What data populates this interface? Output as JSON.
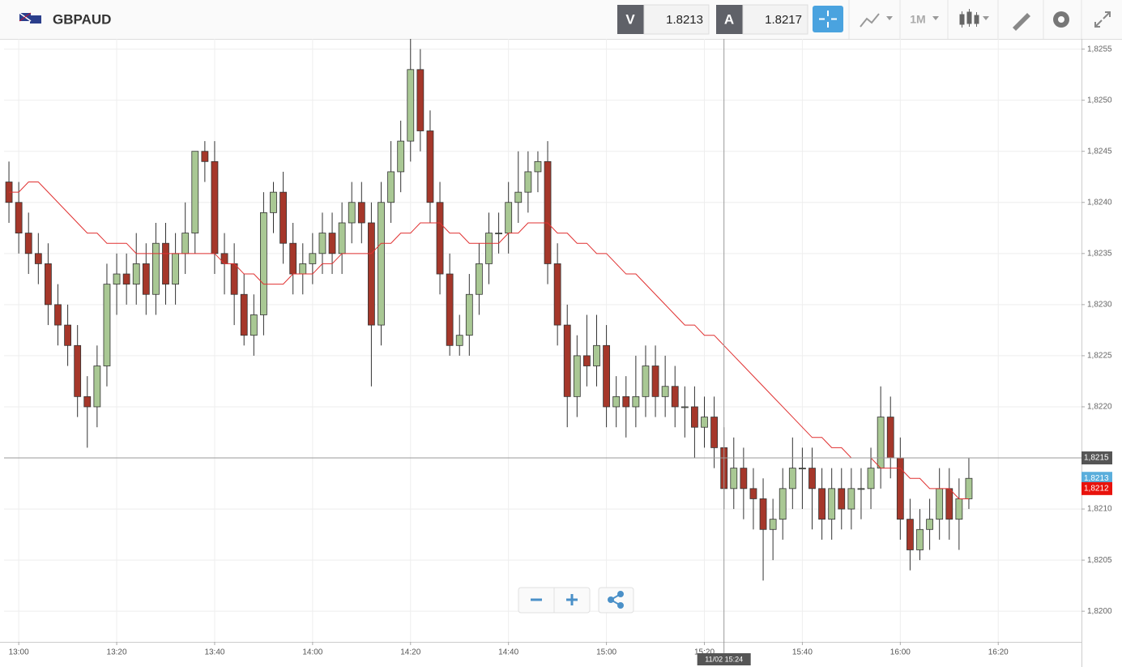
{
  "toolbar": {
    "symbol": "GBPAUD",
    "sell_label": "V",
    "sell_price": "1.8213",
    "buy_label": "A",
    "buy_price": "1.8217",
    "timeframe": "1M"
  },
  "chart_data": {
    "type": "candlestick",
    "x": [
      "12:58",
      "13:00",
      "13:02",
      "13:04",
      "13:06",
      "13:08",
      "13:10",
      "13:12",
      "13:14",
      "13:16",
      "13:18",
      "13:20",
      "13:22",
      "13:24",
      "13:26",
      "13:28",
      "13:30",
      "13:32",
      "13:34",
      "13:36",
      "13:38",
      "13:40",
      "13:42",
      "13:44",
      "13:46",
      "13:48",
      "13:50",
      "13:52",
      "13:54",
      "13:56",
      "13:58",
      "14:00",
      "14:02",
      "14:04",
      "14:06",
      "14:08",
      "14:10",
      "14:12",
      "14:14",
      "14:16",
      "14:18",
      "14:20",
      "14:22",
      "14:24",
      "14:26",
      "14:28",
      "14:30",
      "14:32",
      "14:34",
      "14:36",
      "14:38",
      "14:40",
      "14:42",
      "14:44",
      "14:46",
      "14:48",
      "14:50",
      "14:52",
      "14:54",
      "14:56",
      "14:58",
      "15:00",
      "15:02",
      "15:04",
      "15:06",
      "15:08",
      "15:10",
      "15:12",
      "15:14",
      "15:16",
      "15:18",
      "15:20",
      "15:22",
      "15:24",
      "15:26",
      "15:28",
      "15:30",
      "15:32",
      "15:34",
      "15:36",
      "15:38",
      "15:40",
      "15:42",
      "15:44",
      "15:46",
      "15:48",
      "15:50",
      "15:52",
      "15:54",
      "15:56",
      "15:58",
      "16:00",
      "16:02",
      "16:04",
      "16:06",
      "16:08",
      "16:10",
      "16:12",
      "16:14"
    ],
    "open": [
      1.8242,
      1.824,
      1.8237,
      1.8235,
      1.8234,
      1.823,
      1.8228,
      1.8226,
      1.8221,
      1.822,
      1.8224,
      1.8232,
      1.8233,
      1.8232,
      1.8234,
      1.8231,
      1.8236,
      1.8232,
      1.8235,
      1.8237,
      1.8245,
      1.8244,
      1.8235,
      1.8234,
      1.8231,
      1.8227,
      1.8229,
      1.8239,
      1.8241,
      1.8236,
      1.8233,
      1.8234,
      1.8235,
      1.8237,
      1.8235,
      1.8238,
      1.824,
      1.8238,
      1.8228,
      1.824,
      1.8243,
      1.8246,
      1.8253,
      1.8247,
      1.824,
      1.8233,
      1.8226,
      1.8227,
      1.8231,
      1.8234,
      1.8237,
      1.8237,
      1.824,
      1.8241,
      1.8243,
      1.8244,
      1.8234,
      1.8228,
      1.8221,
      1.8225,
      1.8224,
      1.8226,
      1.822,
      1.8221,
      1.822,
      1.8221,
      1.8224,
      1.8221,
      1.8222,
      1.822,
      1.822,
      1.8218,
      1.8219,
      1.8216,
      1.8212,
      1.8214,
      1.8212,
      1.8211,
      1.8208,
      1.8209,
      1.8212,
      1.8214,
      1.8214,
      1.8212,
      1.8209,
      1.8212,
      1.821,
      1.8212,
      1.8212,
      1.8214,
      1.8219,
      1.8215,
      1.8209,
      1.8206,
      1.8208,
      1.8209,
      1.8212,
      1.8209,
      1.8211
    ],
    "high": [
      1.8244,
      1.8242,
      1.8239,
      1.8237,
      1.8236,
      1.8232,
      1.823,
      1.8228,
      1.8223,
      1.8226,
      1.8234,
      1.8235,
      1.8235,
      1.8237,
      1.8236,
      1.8238,
      1.8238,
      1.8237,
      1.824,
      1.8245,
      1.8246,
      1.8246,
      1.8237,
      1.8236,
      1.8233,
      1.8231,
      1.8241,
      1.8242,
      1.8243,
      1.8238,
      1.8236,
      1.8237,
      1.8239,
      1.8239,
      1.824,
      1.8242,
      1.8242,
      1.824,
      1.8242,
      1.8246,
      1.8248,
      1.8256,
      1.8255,
      1.8249,
      1.8242,
      1.8235,
      1.8229,
      1.8233,
      1.8236,
      1.8239,
      1.8239,
      1.8242,
      1.8245,
      1.8245,
      1.8245,
      1.8246,
      1.8236,
      1.823,
      1.8227,
      1.8229,
      1.8229,
      1.8228,
      1.8223,
      1.8223,
      1.8225,
      1.8226,
      1.8226,
      1.8225,
      1.8224,
      1.8222,
      1.8222,
      1.8221,
      1.8221,
      1.8218,
      1.8217,
      1.8216,
      1.8214,
      1.8213,
      1.8211,
      1.8214,
      1.8217,
      1.8216,
      1.8216,
      1.8214,
      1.8214,
      1.8214,
      1.8214,
      1.8214,
      1.8216,
      1.8222,
      1.8221,
      1.8217,
      1.8211,
      1.821,
      1.8211,
      1.8214,
      1.8214,
      1.8213,
      1.8215
    ],
    "low": [
      1.8238,
      1.8235,
      1.8233,
      1.8232,
      1.8228,
      1.8226,
      1.8224,
      1.8219,
      1.8216,
      1.8218,
      1.8222,
      1.8229,
      1.823,
      1.823,
      1.8229,
      1.8229,
      1.823,
      1.823,
      1.8233,
      1.8235,
      1.8242,
      1.8233,
      1.8231,
      1.8228,
      1.8226,
      1.8225,
      1.8227,
      1.8237,
      1.8234,
      1.8231,
      1.8231,
      1.8232,
      1.8233,
      1.8233,
      1.8233,
      1.8236,
      1.8236,
      1.8222,
      1.8226,
      1.8238,
      1.8241,
      1.8244,
      1.8245,
      1.8238,
      1.8231,
      1.8225,
      1.8225,
      1.8225,
      1.8229,
      1.8232,
      1.8235,
      1.8235,
      1.8238,
      1.8239,
      1.8241,
      1.8232,
      1.8226,
      1.8218,
      1.8219,
      1.8222,
      1.8222,
      1.8218,
      1.8218,
      1.8217,
      1.8218,
      1.8219,
      1.8219,
      1.8219,
      1.8218,
      1.8217,
      1.8215,
      1.8216,
      1.8214,
      1.821,
      1.821,
      1.8209,
      1.8208,
      1.8203,
      1.8205,
      1.8207,
      1.821,
      1.821,
      1.8208,
      1.8207,
      1.8207,
      1.8208,
      1.8208,
      1.8209,
      1.821,
      1.8212,
      1.8213,
      1.8207,
      1.8204,
      1.8205,
      1.8206,
      1.8207,
      1.8207,
      1.8206,
      1.821
    ],
    "close": [
      1.824,
      1.8237,
      1.8235,
      1.8234,
      1.823,
      1.8228,
      1.8226,
      1.8221,
      1.822,
      1.8224,
      1.8232,
      1.8233,
      1.8232,
      1.8234,
      1.8231,
      1.8236,
      1.8232,
      1.8235,
      1.8237,
      1.8245,
      1.8244,
      1.8235,
      1.8234,
      1.8231,
      1.8227,
      1.8229,
      1.8239,
      1.8241,
      1.8236,
      1.8233,
      1.8234,
      1.8235,
      1.8237,
      1.8235,
      1.8238,
      1.824,
      1.8238,
      1.8228,
      1.824,
      1.8243,
      1.8246,
      1.8253,
      1.8247,
      1.824,
      1.8233,
      1.8226,
      1.8227,
      1.8231,
      1.8234,
      1.8237,
      1.8237,
      1.824,
      1.8241,
      1.8243,
      1.8244,
      1.8234,
      1.8228,
      1.8221,
      1.8225,
      1.8224,
      1.8226,
      1.822,
      1.8221,
      1.822,
      1.8221,
      1.8224,
      1.8221,
      1.8222,
      1.822,
      1.822,
      1.8218,
      1.8219,
      1.8216,
      1.8212,
      1.8214,
      1.8212,
      1.8211,
      1.8208,
      1.8209,
      1.8212,
      1.8214,
      1.8214,
      1.8212,
      1.8209,
      1.8212,
      1.821,
      1.8212,
      1.8212,
      1.8214,
      1.8219,
      1.8215,
      1.8209,
      1.8206,
      1.8208,
      1.8209,
      1.8212,
      1.8209,
      1.8211,
      1.8213
    ],
    "up_color": "#a9c894",
    "down_color": "#a5372a",
    "ma": {
      "color": "#e03030",
      "values": [
        1.8241,
        1.8241,
        1.8242,
        1.8242,
        1.8241,
        1.824,
        1.8239,
        1.8238,
        1.8237,
        1.8237,
        1.8236,
        1.8236,
        1.8236,
        1.8235,
        1.8235,
        1.8235,
        1.8235,
        1.8235,
        1.8235,
        1.8235,
        1.8235,
        1.8235,
        1.8234,
        1.8234,
        1.8233,
        1.8233,
        1.8232,
        1.8232,
        1.8232,
        1.8233,
        1.8233,
        1.8233,
        1.8234,
        1.8234,
        1.8235,
        1.8235,
        1.8235,
        1.8235,
        1.8236,
        1.8236,
        1.8237,
        1.8237,
        1.8238,
        1.8238,
        1.8238,
        1.8237,
        1.8237,
        1.8236,
        1.8236,
        1.8236,
        1.8236,
        1.8237,
        1.8237,
        1.8238,
        1.8238,
        1.8238,
        1.8237,
        1.8237,
        1.8236,
        1.8236,
        1.8235,
        1.8235,
        1.8234,
        1.8233,
        1.8233,
        1.8232,
        1.8231,
        1.823,
        1.8229,
        1.8228,
        1.8228,
        1.8227,
        1.8227,
        1.8226,
        1.8225,
        1.8224,
        1.8223,
        1.8222,
        1.8221,
        1.822,
        1.8219,
        1.8218,
        1.8217,
        1.8217,
        1.8216,
        1.8216,
        1.8215,
        1.8215,
        1.8215,
        1.8214,
        1.8214,
        1.8214,
        1.8213,
        1.8213,
        1.8212,
        1.8212,
        1.8212,
        1.8211,
        1.8211
      ]
    },
    "xlim": [
      "12:57",
      "16:37"
    ],
    "xticks": [
      "13:00",
      "13:20",
      "13:40",
      "14:00",
      "14:20",
      "14:40",
      "15:00",
      "15:20",
      "15:40",
      "16:00",
      "16:20"
    ],
    "ylim": [
      1.8197,
      1.8256
    ],
    "yticks": [
      {
        "value": 1.8255,
        "label": "1,8255"
      },
      {
        "value": 1.825,
        "label": "1,8250"
      },
      {
        "value": 1.8245,
        "label": "1,8245"
      },
      {
        "value": 1.824,
        "label": "1,8240"
      },
      {
        "value": 1.8235,
        "label": "1,8235"
      },
      {
        "value": 1.823,
        "label": "1,8230"
      },
      {
        "value": 1.8225,
        "label": "1,8225"
      },
      {
        "value": 1.822,
        "label": "1,8220"
      },
      {
        "value": 1.8215,
        "label": "1,8215"
      },
      {
        "value": 1.821,
        "label": "1,8210"
      },
      {
        "value": 1.8205,
        "label": "1,8205"
      },
      {
        "value": 1.82,
        "label": "1,8200"
      }
    ],
    "grid": true,
    "crosshair": {
      "time": {
        "value": "15:24",
        "label": "11/02 15:24"
      },
      "price": {
        "value": 1.8215,
        "label": "1,8215"
      }
    },
    "price_markers": [
      {
        "value": 1.8213,
        "label": "1,8213",
        "color": "#5aaedc"
      },
      {
        "value": 1.8212,
        "label": "1,8212",
        "color": "#e8120c"
      }
    ]
  }
}
